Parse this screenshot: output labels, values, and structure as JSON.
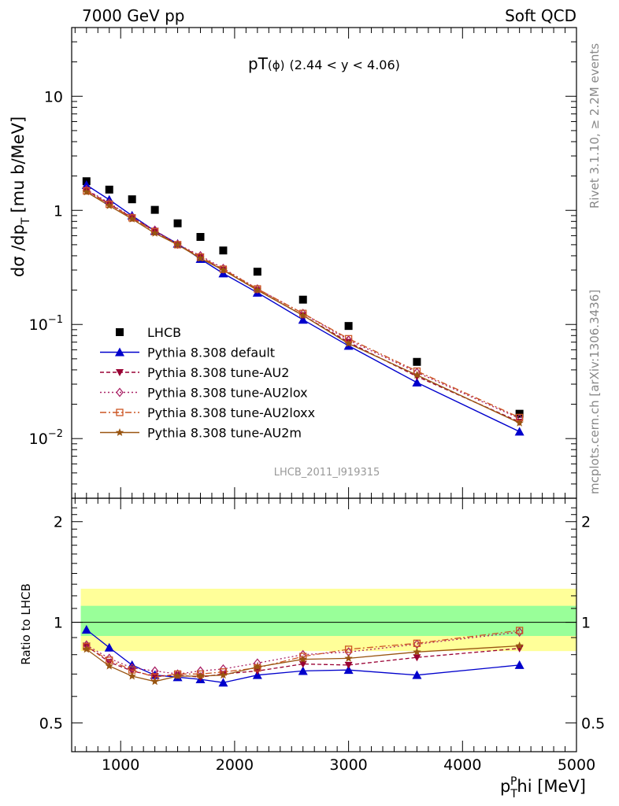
{
  "header": {
    "left": "7000 GeV pp",
    "right": "Soft QCD",
    "title_main": "pT",
    "title_sub": "(ϕ)",
    "title_range": "(2.44 < y < 4.06)"
  },
  "side": {
    "rivet": "Rivet 3.1.10, ≥ 2.2M events",
    "mcplots": "mcplots.cern.ch [arXiv:1306.3436]"
  },
  "analysis_id": "LHCB_2011_I919315",
  "labels": {
    "ylabel_main": "dσ /dp",
    "ylabel_main_sub": "T",
    "ylabel_main_unit": "[mu b/MeV]",
    "ylabel_ratio": "Ratio to LHCB",
    "xlabel_base": "p",
    "xlabel_sub": "T",
    "xlabel_sup": "P",
    "xlabel_rest": "hi [MeV]"
  },
  "chart_data": [
    {
      "type": "line",
      "scale": "log",
      "xlim": [
        570,
        5000
      ],
      "ylim": [
        0.003,
        40
      ],
      "yticks": [
        {
          "v": 0.01,
          "base": "10",
          "exp": "−2"
        },
        {
          "v": 0.1,
          "base": "10",
          "exp": "−1"
        },
        {
          "v": 1,
          "label": "1"
        },
        {
          "v": 10,
          "label": "10"
        }
      ],
      "x": [
        700,
        900,
        1100,
        1300,
        1500,
        1700,
        1900,
        2200,
        2600,
        3000,
        3600,
        4500
      ],
      "series": [
        {
          "name": "LHCB",
          "color": "#000000",
          "marker": "square",
          "dash": "none",
          "values": [
            1.8,
            1.52,
            1.25,
            1.01,
            0.77,
            0.585,
            0.445,
            0.29,
            0.165,
            0.097,
            0.047,
            0.0165
          ]
        },
        {
          "name": "Pythia 8.308 default",
          "color": "#0000cc",
          "marker": "triangle-up",
          "dash": "none",
          "values": [
            1.67,
            1.24,
            0.9,
            0.66,
            0.51,
            0.375,
            0.28,
            0.19,
            0.11,
            0.065,
            0.031,
            0.0115
          ]
        },
        {
          "name": "Pythia 8.308 tune-AU2",
          "color": "#990033",
          "marker": "triangle-down",
          "dash": "5,3",
          "values": [
            1.5,
            1.14,
            0.86,
            0.66,
            0.5,
            0.39,
            0.3,
            0.2,
            0.12,
            0.07,
            0.035,
            0.014
          ]
        },
        {
          "name": "Pythia 8.308 tune-AU2lox",
          "color": "#aa2266",
          "marker": "diamond-open",
          "dash": "2,3",
          "values": [
            1.52,
            1.16,
            0.87,
            0.67,
            0.505,
            0.4,
            0.31,
            0.205,
            0.125,
            0.073,
            0.038,
            0.015
          ]
        },
        {
          "name": "Pythia 8.308 tune-AU2loxx",
          "color": "#cc5522",
          "marker": "square-open",
          "dash": "8,3,2,3",
          "values": [
            1.48,
            1.13,
            0.86,
            0.65,
            0.5,
            0.39,
            0.305,
            0.205,
            0.125,
            0.075,
            0.039,
            0.0153
          ]
        },
        {
          "name": "Pythia 8.308 tune-AU2m",
          "color": "#995511",
          "marker": "star",
          "dash": "none",
          "values": [
            1.45,
            1.1,
            0.84,
            0.63,
            0.5,
            0.38,
            0.3,
            0.2,
            0.12,
            0.068,
            0.036,
            0.0137
          ]
        }
      ]
    },
    {
      "type": "line",
      "scale": "log",
      "xlim": [
        570,
        5000
      ],
      "ylim": [
        0.41,
        2.35
      ],
      "yticks": [
        {
          "v": 0.5,
          "label": "0.5"
        },
        {
          "v": 1,
          "label": "1"
        },
        {
          "v": 2,
          "label": "2"
        }
      ],
      "xticks": [
        1000,
        2000,
        3000,
        4000,
        5000
      ],
      "bands": [
        {
          "color": "#ffff99",
          "x0": 650,
          "x1": 5000,
          "y0": 0.82,
          "y1": 1.26
        },
        {
          "color": "#99ff99",
          "x0": 650,
          "x1": 5000,
          "y0": 0.91,
          "y1": 1.12
        }
      ],
      "x": [
        700,
        900,
        1100,
        1300,
        1500,
        1700,
        1900,
        2200,
        2600,
        3000,
        3600,
        4500
      ],
      "series": [
        {
          "name": "Pythia 8.308 default",
          "values": [
            0.95,
            0.84,
            0.745,
            0.695,
            0.685,
            0.675,
            0.66,
            0.695,
            0.715,
            0.72,
            0.695,
            0.745
          ]
        },
        {
          "name": "Pythia 8.308 tune-AU2",
          "values": [
            0.85,
            0.76,
            0.715,
            0.69,
            0.695,
            0.685,
            0.7,
            0.715,
            0.75,
            0.745,
            0.785,
            0.835
          ]
        },
        {
          "name": "Pythia 8.308 tune-AU2lox",
          "values": [
            0.855,
            0.78,
            0.73,
            0.715,
            0.7,
            0.715,
            0.725,
            0.755,
            0.8,
            0.815,
            0.86,
            0.935
          ]
        },
        {
          "name": "Pythia 8.308 tune-AU2loxx",
          "values": [
            0.845,
            0.77,
            0.72,
            0.685,
            0.7,
            0.7,
            0.71,
            0.73,
            0.79,
            0.83,
            0.865,
            0.945
          ]
        },
        {
          "name": "Pythia 8.308 tune-AU2m",
          "values": [
            0.83,
            0.74,
            0.69,
            0.665,
            0.69,
            0.69,
            0.695,
            0.735,
            0.775,
            0.78,
            0.815,
            0.85
          ]
        }
      ]
    }
  ]
}
